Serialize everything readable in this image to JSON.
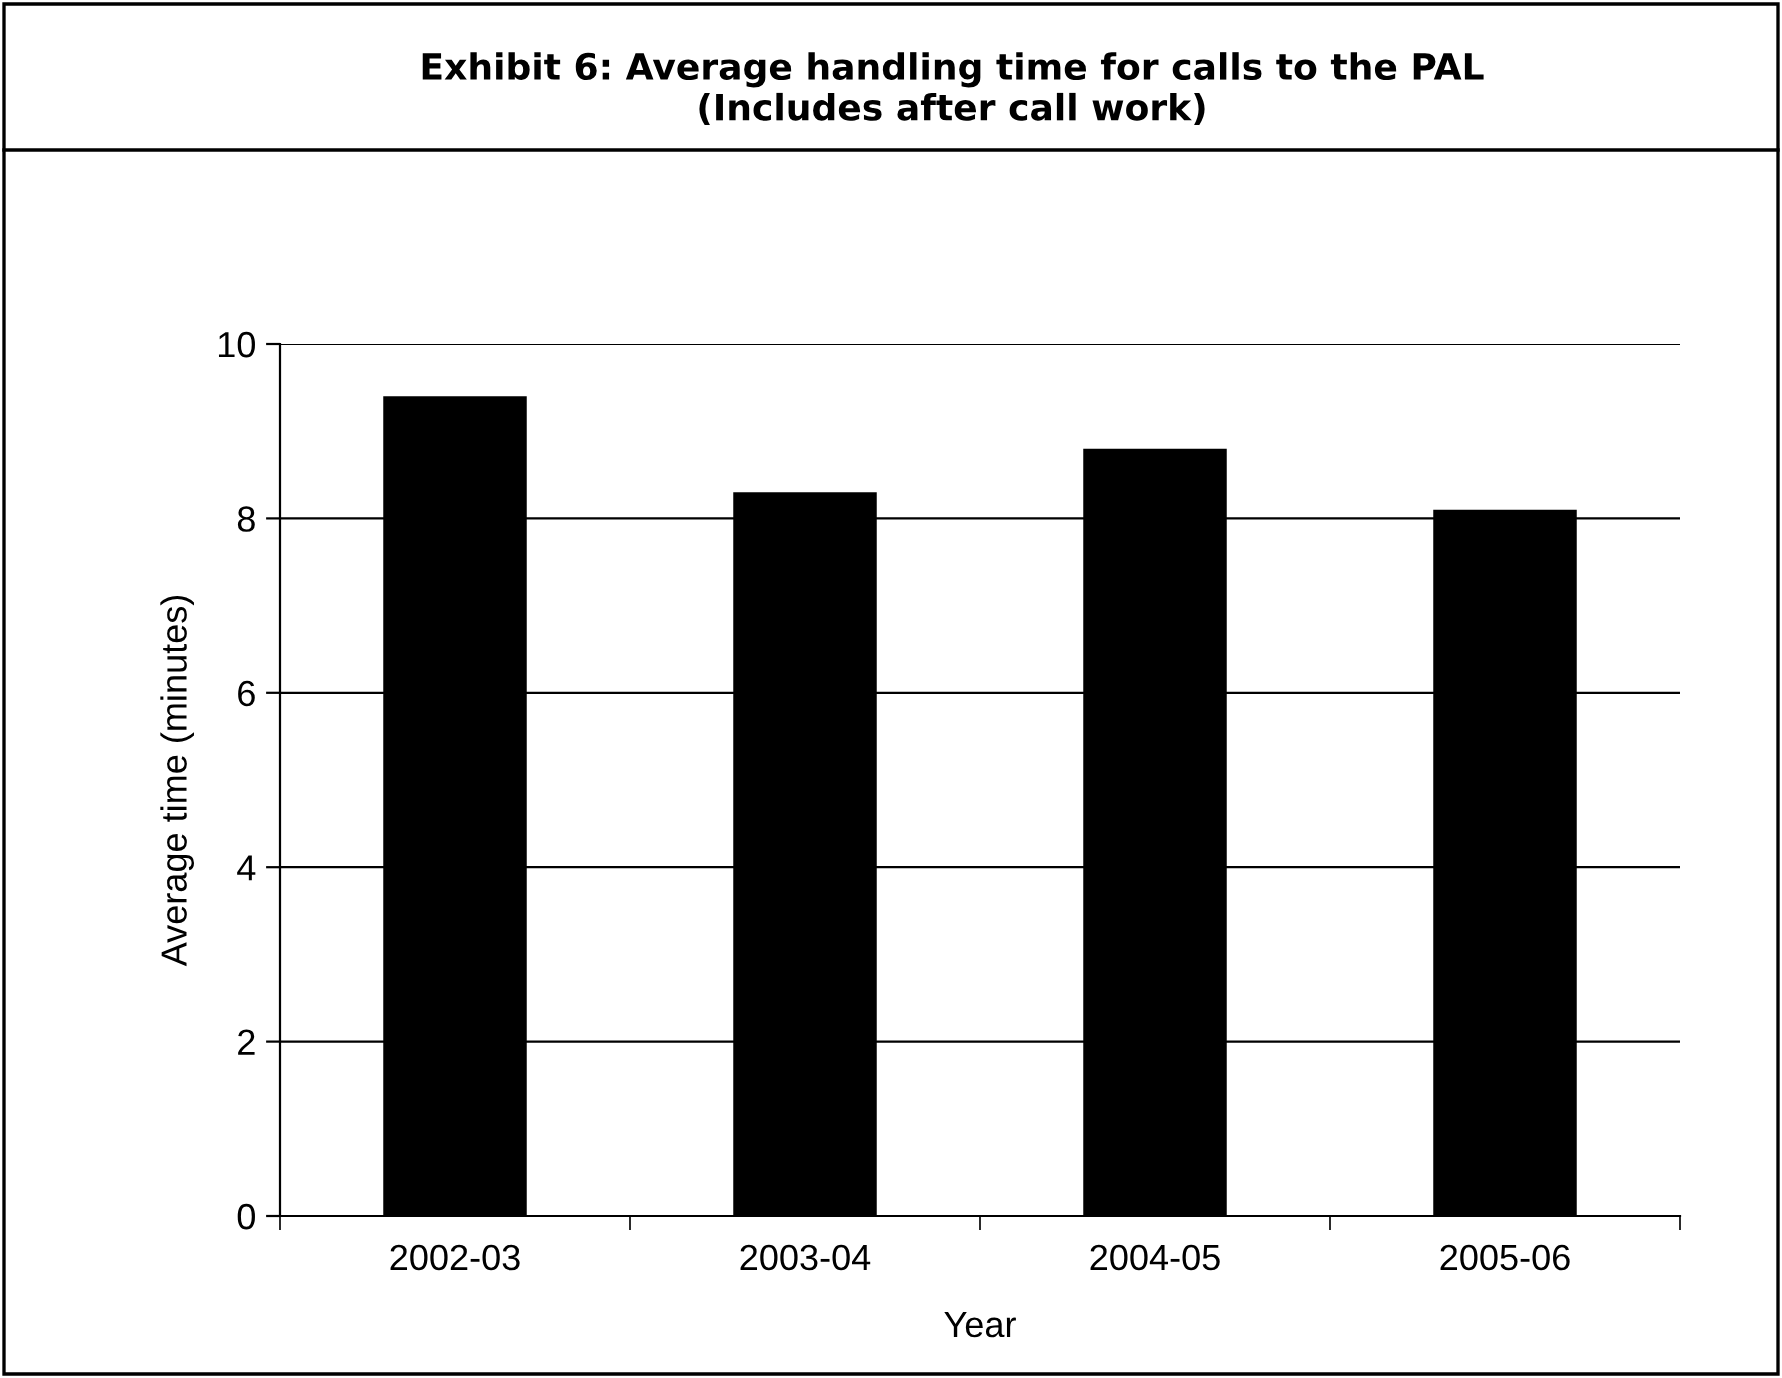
{
  "chart_data": {
    "type": "bar",
    "title": "Exhibit 6: Average handling time for calls to the PAL\n(Includes after call work)",
    "xlabel": "Year",
    "ylabel": "Average time (minutes)",
    "categories": [
      "2002-03",
      "2003-04",
      "2004-05",
      "2005-06"
    ],
    "values": [
      9.4,
      8.3,
      8.8,
      8.1
    ],
    "color": "#000000",
    "ylim": [
      0,
      10
    ],
    "yticks": [
      0,
      2,
      4,
      6,
      8,
      10
    ],
    "grid": "y",
    "legend": false
  }
}
